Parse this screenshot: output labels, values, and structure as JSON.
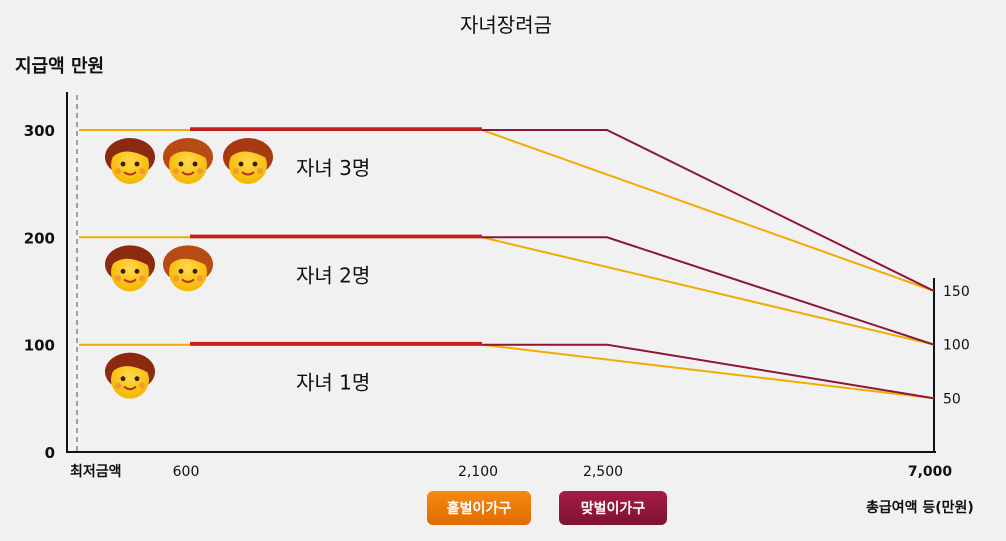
{
  "chart_data": {
    "type": "line",
    "title": "자녀장려금",
    "ylabel": "지급액 만원",
    "xlabel": "총급여액 등(만원)",
    "x_min_label": "최저금액",
    "x_ticks": [
      "600",
      "2,100",
      "2,500",
      "7,000"
    ],
    "y_ticks": [
      "300",
      "200",
      "100",
      "0"
    ],
    "right_ticks": [
      "150",
      "100",
      "50"
    ],
    "legend": [
      "홑벌이가구",
      "맞벌이가구"
    ],
    "colors": {
      "single": "#f0ad00",
      "dual": "#8c1538"
    },
    "groups": [
      {
        "label": "자녀 3명",
        "children": 3,
        "single": [
          [
            0,
            300
          ],
          [
            2100,
            300
          ],
          [
            7000,
            150
          ]
        ],
        "dual": [
          [
            600,
            300
          ],
          [
            2500,
            300
          ],
          [
            7000,
            150
          ]
        ]
      },
      {
        "label": "자녀 2명",
        "children": 2,
        "single": [
          [
            0,
            200
          ],
          [
            2100,
            200
          ],
          [
            7000,
            100
          ]
        ],
        "dual": [
          [
            600,
            200
          ],
          [
            2500,
            200
          ],
          [
            7000,
            100
          ]
        ]
      },
      {
        "label": "자녀 1명",
        "children": 1,
        "single": [
          [
            0,
            100
          ],
          [
            2100,
            100
          ],
          [
            7000,
            50
          ]
        ],
        "dual": [
          [
            600,
            100
          ],
          [
            2500,
            100
          ],
          [
            7000,
            50
          ]
        ]
      }
    ]
  }
}
